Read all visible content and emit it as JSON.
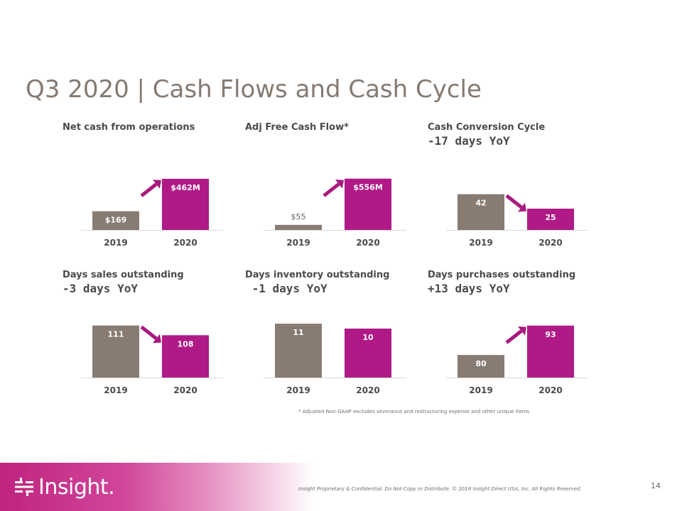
{
  "slide": {
    "title": "Q3 2020 | Cash Flows and Cash Cycle",
    "footnote": "* Adjusted Non-GAAP excludes severance and restructuring  expense and other unique items",
    "footer_text": "Insight Proprietary & Confidential. Do Not Copy or Distribute.  © 2019 Insight Direct USA, Inc.  All Rights Reserved.",
    "page_number": "14",
    "logo_text": "Insight.",
    "colors": {
      "gray_bar": "#877b72",
      "purple_bar": "#b01a86",
      "arrow": "#a8197f",
      "title": "#857a71"
    }
  },
  "chart_data": [
    {
      "type": "bar",
      "title": "Net cash from operations",
      "subtitle": "",
      "categories": [
        "2019",
        "2020"
      ],
      "values": [
        169,
        462
      ],
      "value_labels": [
        "$169",
        "$462M"
      ],
      "ylim": [
        0,
        500
      ],
      "trend": "up"
    },
    {
      "type": "bar",
      "title": "Adj Free Cash Flow*",
      "subtitle": "",
      "categories": [
        "2019",
        "2020"
      ],
      "values": [
        55,
        556
      ],
      "value_labels": [
        "$55",
        "$556M"
      ],
      "ylim": [
        0,
        600
      ],
      "trend": "up"
    },
    {
      "type": "bar",
      "title": "Cash Conversion Cycle",
      "subtitle": "-17 days YoY",
      "categories": [
        "2019",
        "2020"
      ],
      "values": [
        42,
        25
      ],
      "value_labels": [
        "42",
        "25"
      ],
      "ylim": [
        0,
        65
      ],
      "trend": "down"
    },
    {
      "type": "bar",
      "title": "Days sales outstanding",
      "subtitle": "-3 days YoY",
      "categories": [
        "2019",
        "2020"
      ],
      "values": [
        111,
        108
      ],
      "value_labels": [
        "111",
        "108"
      ],
      "ylim": [
        95,
        112
      ],
      "trend": "down"
    },
    {
      "type": "bar",
      "title": "Days inventory outstanding",
      "subtitle": " -1 days YoY",
      "categories": [
        "2019",
        "2020"
      ],
      "values": [
        11,
        10
      ],
      "value_labels": [
        "11",
        "10"
      ],
      "ylim": [
        0,
        11.3
      ],
      "trend": "none"
    },
    {
      "type": "bar",
      "title": "Days purchases outstanding",
      "subtitle": "+13 days YoY",
      "categories": [
        "2019",
        "2020"
      ],
      "values": [
        80,
        93
      ],
      "value_labels": [
        "80",
        "93"
      ],
      "ylim": [
        70,
        94.5
      ],
      "trend": "up"
    }
  ]
}
